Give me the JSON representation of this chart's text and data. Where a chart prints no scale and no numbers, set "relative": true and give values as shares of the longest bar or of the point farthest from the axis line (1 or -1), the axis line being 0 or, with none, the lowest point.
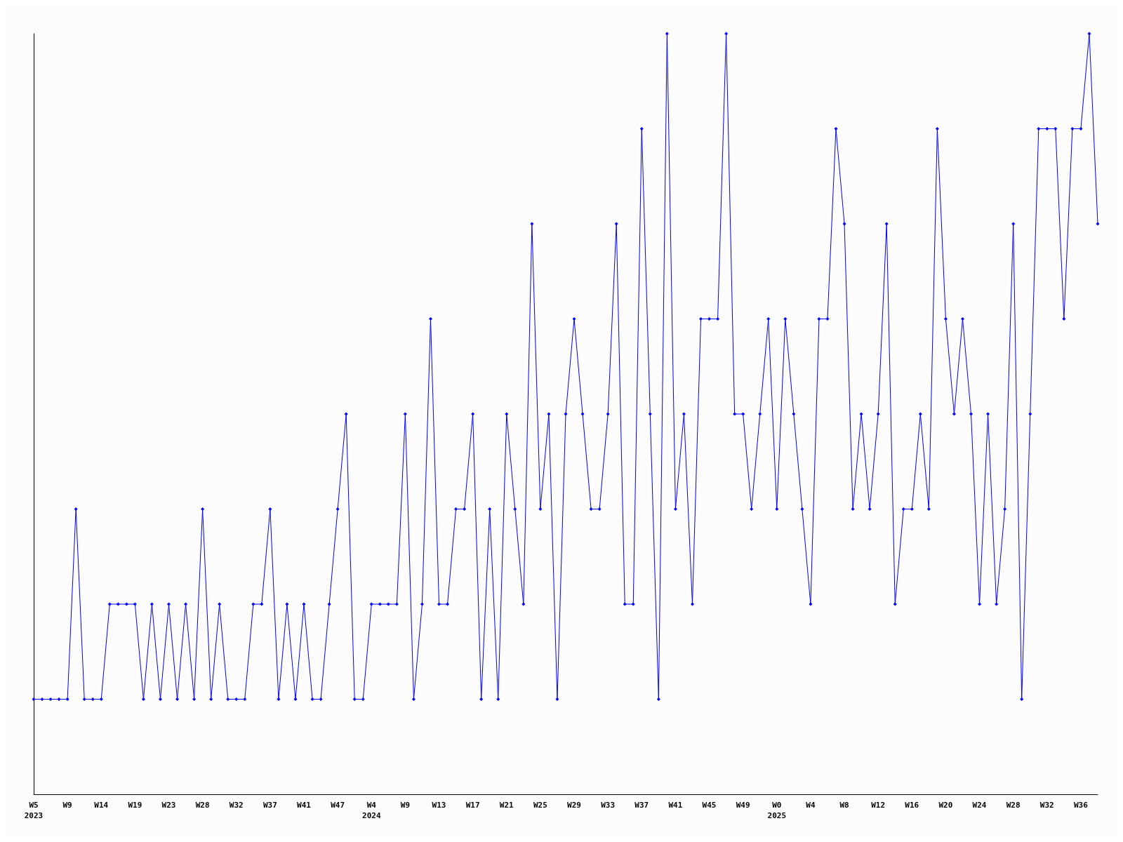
{
  "chart_data": {
    "type": "line",
    "relative": true,
    "marker": "diamond",
    "line_style": "solid",
    "grid": false,
    "categories": [
      "W5\n2023",
      null,
      null,
      null,
      "W9",
      null,
      null,
      null,
      "W14",
      null,
      null,
      null,
      "W19",
      null,
      null,
      null,
      "W23",
      null,
      null,
      null,
      "W28",
      null,
      null,
      null,
      "W32",
      null,
      null,
      null,
      "W37",
      null,
      null,
      null,
      "W41",
      null,
      null,
      null,
      "W47",
      null,
      null,
      null,
      "W4\n2024",
      null,
      null,
      null,
      "W9",
      null,
      null,
      null,
      "W13",
      null,
      null,
      null,
      "W17",
      null,
      null,
      null,
      "W21",
      null,
      null,
      null,
      "W25",
      null,
      null,
      null,
      "W29",
      null,
      null,
      null,
      "W33",
      null,
      null,
      null,
      "W37",
      null,
      null,
      null,
      "W41",
      null,
      null,
      null,
      "W45",
      null,
      null,
      null,
      "W49",
      null,
      null,
      null,
      "W0\n2025",
      null,
      null,
      null,
      "W4",
      null,
      null,
      null,
      "W8",
      null,
      null,
      null,
      "W12",
      null,
      null,
      null,
      "W16",
      null,
      null,
      null,
      "W20",
      null,
      null,
      null,
      "W24",
      null,
      null,
      null,
      "W28",
      null,
      null,
      null,
      "W32",
      null,
      null,
      null,
      "W36",
      null,
      null
    ],
    "series": [
      {
        "color": "#0000ff",
        "values": [
          0.125,
          0.125,
          0.125,
          0.125,
          0.125,
          0.375,
          0.125,
          0.125,
          0.125,
          0.25,
          0.25,
          0.25,
          0.25,
          0.125,
          0.25,
          0.125,
          0.25,
          0.125,
          0.25,
          0.125,
          0.375,
          0.125,
          0.25,
          0.125,
          0.125,
          0.125,
          0.25,
          0.25,
          0.375,
          0.125,
          0.25,
          0.125,
          0.25,
          0.125,
          0.125,
          0.25,
          0.375,
          0.5,
          0.125,
          0.125,
          0.25,
          0.25,
          0.25,
          0.25,
          0.5,
          0.125,
          0.25,
          0.625,
          0.25,
          0.25,
          0.375,
          0.375,
          0.5,
          0.125,
          0.375,
          0.125,
          0.5,
          0.375,
          0.25,
          0.75,
          0.375,
          0.5,
          0.125,
          0.5,
          0.625,
          0.5,
          0.375,
          0.375,
          0.5,
          0.75,
          0.25,
          0.25,
          0.875,
          0.5,
          0.125,
          1,
          0.375,
          0.5,
          0.25,
          0.625,
          0.625,
          0.625,
          1,
          0.5,
          0.5,
          0.375,
          0.5,
          0.625,
          0.375,
          0.625,
          0.5,
          0.375,
          0.25,
          0.625,
          0.625,
          0.875,
          0.75,
          0.375,
          0.5,
          0.375,
          0.5,
          0.75,
          0.25,
          0.375,
          0.375,
          0.5,
          0.375,
          0.875,
          0.625,
          0.5,
          0.625,
          0.5,
          0.25,
          0.5,
          0.25,
          0.375,
          0.75,
          0.125,
          0.5,
          0.875,
          0.875,
          0.875,
          0.625,
          0.875,
          0.875,
          1,
          0.75
        ]
      }
    ]
  }
}
